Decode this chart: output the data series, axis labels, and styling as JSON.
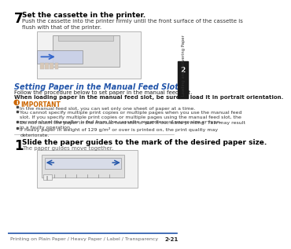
{
  "bg_color": "#ffffff",
  "tab_color": "#1a1a1a",
  "tab_text": "2",
  "tab_label": "Loading and Delivering Paper",
  "blue_color": "#2255aa",
  "step7_num": "7",
  "step7_bold": "Set the cassette in the printer.",
  "step7_body": "Push the cassette into the printer firmly until the front surface of the cassette is\nflush with that of the printer.",
  "section_title": "Setting Paper in the Manual Feed Slot",
  "section_body1": "Follow the procedure below to set paper in the manual feed slot.",
  "section_body2": "When loading paper in the manual feed slot, be sure to load it in portrait orientation.",
  "important_label": "IMPORTANT",
  "bullet1": "In the manual feed slot, you can set only one sheet of paper at a time.",
  "bullet2": "You cannot specify multiple print copies or multiple pages when you use the manual feed\nslot. If you specify multiple print copies or multiple pages using the manual feed slot, the\nsecond sheet thereafter is fed from the cassette regardless of paper size or type.",
  "bullet3": "Do not touch the paper in the manual feed slot or pull it out while printing. This may result\nin a faulty operation.",
  "bullet4": "If heavy paper in weight of 129 g/m² or over is printed on, the print quality may\ndeteriorate.",
  "step1_num": "1",
  "step1_bold": "Slide the paper guides to the mark of the desired paper size.",
  "step1_body": "The paper guides move together.",
  "footer_text": "Printing on Plain Paper / Heavy Paper / Label / Transparency",
  "footer_page": "2-21",
  "footer_line_color": "#2255aa",
  "important_icon_color": "#cc6600"
}
